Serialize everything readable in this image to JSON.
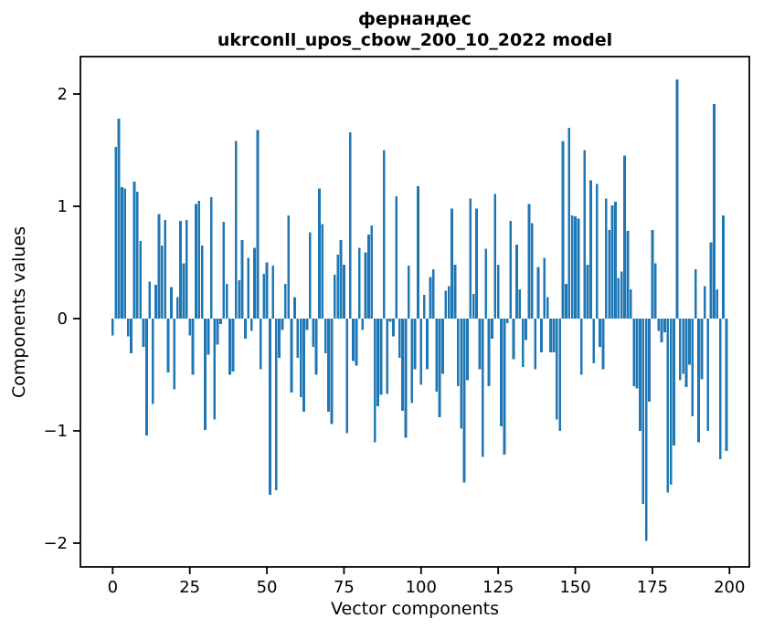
{
  "figure": {
    "background": "#ffffff",
    "bar_color": "#1f77b4",
    "axis_color": "#000000"
  },
  "chart_data": {
    "type": "bar",
    "title": "фернандес\nukrconll_upos_cbow_200_10_2022 model",
    "title_lines": [
      "фернандес",
      "ukrconll_upos_cbow_200_10_2022 model"
    ],
    "xlabel": "Vector components",
    "ylabel": "Components values",
    "n_components": 200,
    "x_start": 0,
    "xlim": [
      -10.4,
      206.4
    ],
    "ylim": [
      -2.21,
      2.33
    ],
    "grid": false,
    "legend": "none",
    "x_ticks": [
      0,
      25,
      50,
      75,
      100,
      125,
      150,
      175,
      200
    ],
    "x_tick_labels": [
      "0",
      "25",
      "50",
      "75",
      "100",
      "125",
      "150",
      "175",
      "200"
    ],
    "y_ticks": [
      -2,
      -1,
      0,
      1,
      2
    ],
    "y_tick_labels": [
      "−2",
      "−1",
      "0",
      "1",
      "2"
    ],
    "values": [
      -0.15,
      1.53,
      1.78,
      1.17,
      1.16,
      -0.16,
      -0.31,
      1.22,
      1.13,
      0.69,
      -0.25,
      -1.04,
      0.33,
      -0.76,
      0.3,
      0.93,
      0.65,
      0.88,
      -0.48,
      0.28,
      -0.63,
      0.19,
      0.87,
      0.49,
      0.88,
      -0.15,
      -0.5,
      1.02,
      1.05,
      0.65,
      -0.99,
      -0.32,
      1.08,
      -0.9,
      -0.23,
      -0.05,
      0.86,
      0.31,
      -0.5,
      -0.47,
      1.58,
      0.34,
      0.7,
      -0.18,
      0.54,
      -0.11,
      0.63,
      1.68,
      -0.45,
      0.4,
      0.5,
      -1.57,
      0.47,
      -1.53,
      -0.35,
      -0.1,
      0.31,
      0.92,
      -0.66,
      0.19,
      -0.35,
      -0.7,
      -0.83,
      -0.1,
      0.77,
      -0.25,
      -0.5,
      1.16,
      0.84,
      -0.31,
      -0.83,
      -0.94,
      0.39,
      0.57,
      0.7,
      0.48,
      -1.02,
      1.66,
      -0.38,
      -0.42,
      0.63,
      -0.1,
      0.59,
      0.75,
      0.83,
      -1.1,
      -0.78,
      -0.68,
      1.5,
      -0.67,
      -0.03,
      -0.16,
      1.09,
      -0.35,
      -0.82,
      -1.06,
      0.47,
      -0.75,
      -0.45,
      1.18,
      -0.59,
      0.21,
      -0.45,
      0.37,
      0.44,
      -0.65,
      -0.88,
      -0.49,
      0.25,
      0.29,
      0.98,
      0.48,
      -0.6,
      -0.98,
      -1.46,
      -0.55,
      1.07,
      0.22,
      0.98,
      -0.45,
      -1.23,
      0.62,
      -0.6,
      -0.18,
      1.11,
      0.48,
      -0.96,
      -1.21,
      -0.04,
      0.87,
      -0.36,
      0.66,
      0.26,
      -0.43,
      -0.19,
      1.02,
      0.85,
      -0.45,
      0.46,
      -0.3,
      0.54,
      0.19,
      -0.3,
      -0.3,
      -0.9,
      -1.0,
      1.58,
      0.31,
      1.7,
      0.92,
      0.91,
      0.89,
      -0.5,
      1.5,
      0.48,
      1.23,
      -0.4,
      1.2,
      -0.25,
      -0.45,
      1.07,
      0.79,
      1.01,
      1.04,
      0.36,
      0.42,
      1.45,
      0.78,
      0.26,
      -0.6,
      -0.62,
      -1.0,
      -1.65,
      -1.98,
      -0.74,
      0.79,
      0.49,
      -0.11,
      -0.21,
      -0.12,
      -1.55,
      -1.48,
      -1.13,
      2.13,
      -0.55,
      -0.49,
      -0.61,
      -0.41,
      -0.87,
      0.44,
      -1.1,
      -0.54,
      0.29,
      -1.0,
      0.68,
      1.91,
      0.26,
      -1.25,
      0.92,
      -1.18
    ]
  }
}
